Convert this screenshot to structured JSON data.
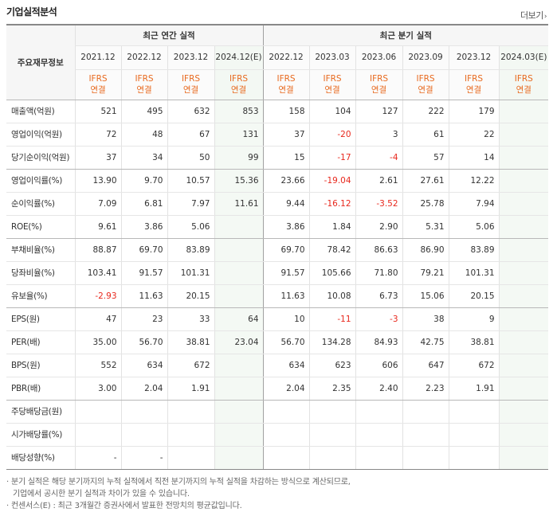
{
  "title": "기업실적분석",
  "more_label": "더보기",
  "row_header_label": "주요재무정보",
  "annual_header": "최근 연간 실적",
  "quarter_header": "최근 분기 실적",
  "annual_periods": [
    "2021.12",
    "2022.12",
    "2023.12",
    "2024.12(E)"
  ],
  "quarter_periods": [
    "2022.12",
    "2023.03",
    "2023.06",
    "2023.09",
    "2023.12",
    "2024.03(E)"
  ],
  "ifrs_line1": "IFRS",
  "ifrs_line2": "연결",
  "rows": [
    {
      "label": "매출액(억원)",
      "annual": [
        "521",
        "495",
        "632",
        "853"
      ],
      "quarter": [
        "158",
        "104",
        "127",
        "222",
        "179",
        ""
      ]
    },
    {
      "label": "영업이익(억원)",
      "annual": [
        "72",
        "48",
        "67",
        "131"
      ],
      "quarter": [
        "37",
        "-20",
        "3",
        "61",
        "22",
        ""
      ]
    },
    {
      "label": "당기순이익(억원)",
      "annual": [
        "37",
        "34",
        "50",
        "99"
      ],
      "quarter": [
        "15",
        "-17",
        "-4",
        "57",
        "14",
        ""
      ]
    },
    {
      "label": "영업이익률(%)",
      "annual": [
        "13.90",
        "9.70",
        "10.57",
        "15.36"
      ],
      "quarter": [
        "23.66",
        "-19.04",
        "2.61",
        "27.61",
        "12.22",
        ""
      ]
    },
    {
      "label": "순이익률(%)",
      "annual": [
        "7.09",
        "6.81",
        "7.97",
        "11.61"
      ],
      "quarter": [
        "9.44",
        "-16.12",
        "-3.52",
        "25.78",
        "7.94",
        ""
      ]
    },
    {
      "label": "ROE(%)",
      "annual": [
        "9.61",
        "3.86",
        "5.06",
        ""
      ],
      "quarter": [
        "3.86",
        "1.84",
        "2.90",
        "5.31",
        "5.06",
        ""
      ]
    },
    {
      "label": "부채비율(%)",
      "annual": [
        "88.87",
        "69.70",
        "83.89",
        ""
      ],
      "quarter": [
        "69.70",
        "78.42",
        "86.63",
        "86.90",
        "83.89",
        ""
      ]
    },
    {
      "label": "당좌비율(%)",
      "annual": [
        "103.41",
        "91.57",
        "101.31",
        ""
      ],
      "quarter": [
        "91.57",
        "105.66",
        "71.80",
        "79.21",
        "101.31",
        ""
      ]
    },
    {
      "label": "유보율(%)",
      "annual": [
        "-2.93",
        "11.63",
        "20.15",
        ""
      ],
      "quarter": [
        "11.63",
        "10.08",
        "6.73",
        "15.06",
        "20.15",
        ""
      ]
    },
    {
      "label": "EPS(원)",
      "annual": [
        "47",
        "23",
        "33",
        "64"
      ],
      "quarter": [
        "10",
        "-11",
        "-3",
        "38",
        "9",
        ""
      ]
    },
    {
      "label": "PER(배)",
      "annual": [
        "35.00",
        "56.70",
        "38.81",
        "23.04"
      ],
      "quarter": [
        "56.70",
        "134.28",
        "84.93",
        "42.75",
        "38.81",
        ""
      ]
    },
    {
      "label": "BPS(원)",
      "annual": [
        "552",
        "634",
        "672",
        ""
      ],
      "quarter": [
        "634",
        "623",
        "606",
        "647",
        "672",
        ""
      ]
    },
    {
      "label": "PBR(배)",
      "annual": [
        "3.00",
        "2.04",
        "1.91",
        ""
      ],
      "quarter": [
        "2.04",
        "2.35",
        "2.40",
        "2.23",
        "1.91",
        ""
      ]
    },
    {
      "label": "주당배당금(원)",
      "annual": [
        "",
        "",
        "",
        ""
      ],
      "quarter": [
        "",
        "",
        "",
        "",
        "",
        ""
      ]
    },
    {
      "label": "시가배당률(%)",
      "annual": [
        "",
        "",
        "",
        ""
      ],
      "quarter": [
        "",
        "",
        "",
        "",
        "",
        ""
      ]
    },
    {
      "label": "배당성향(%)",
      "annual": [
        "-",
        "-",
        "",
        ""
      ],
      "quarter": [
        "",
        "",
        "",
        "",
        "",
        ""
      ]
    }
  ],
  "group_ends": [
    2,
    5,
    8,
    12
  ],
  "notes": [
    "· 분기 실적은 해당 분기까지의 누적 실적에서 직전 분기까지의 누적 실적을 차감하는 방식으로 계산되므로,",
    "기업에서 공시한 분기 실적과 차이가 있을 수 있습니다.",
    "· 컨센서스(E) : 최근 3개월간 증권사에서 발표한 전망치의 평균값입니다."
  ],
  "colors": {
    "accent_orange": "#e86a1f",
    "negative_red": "#e8281d",
    "estimate_bg": "#f4f9f4"
  }
}
